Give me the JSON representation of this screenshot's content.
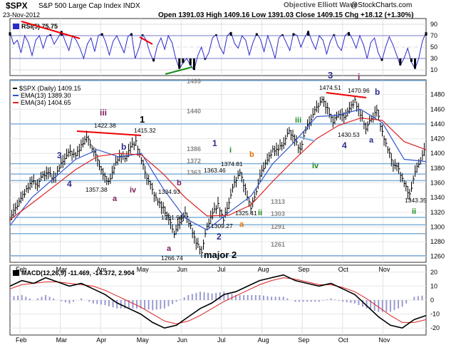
{
  "header": {
    "symbol": "$SPX",
    "description": "S&P 500 Large Cap Index  INDX",
    "date": "23-Nov-2012",
    "ohlc": "Open 1391.03  High 1409.16  Low 1391.03  Close 1409.15  Chg +18.12 (+1.30%)",
    "brand": "Objective Elliott Wave",
    "brand_site": "@StockCharts.com"
  },
  "chart_data": [
    {
      "type": "line",
      "title": "RSI(5) 75.75",
      "ylim": [
        0,
        100
      ],
      "y_ticks": [
        "10",
        "30",
        "50",
        "70",
        "90"
      ],
      "overbought": 70,
      "oversold": 30,
      "series": [
        {
          "values": [
            76,
            55,
            62,
            40,
            70,
            58,
            35,
            62,
            70,
            48,
            68,
            72,
            55,
            66,
            78,
            60,
            44,
            70,
            62,
            48,
            30,
            55,
            66,
            42,
            70,
            74,
            58,
            36,
            60,
            70,
            55,
            40,
            68,
            74,
            30,
            48,
            72,
            62,
            40,
            25,
            52,
            66,
            46,
            70,
            58,
            30,
            12,
            22,
            30,
            18,
            10,
            35,
            50,
            28,
            40,
            66,
            72,
            50,
            38,
            70,
            76,
            56,
            48,
            70,
            62,
            36,
            58,
            74,
            64,
            42,
            70,
            52,
            30,
            66,
            72,
            58,
            44,
            74,
            70,
            50,
            66,
            78,
            60,
            46,
            70,
            62,
            38,
            60,
            72,
            52,
            44,
            70,
            76,
            64,
            48,
            70,
            54,
            30,
            58,
            66,
            40,
            26,
            50,
            68,
            54,
            36,
            18,
            30,
            48,
            24,
            12,
            30,
            60,
            76
          ]
        }
      ]
    },
    {
      "type": "line",
      "title": "$SPX (Daily) 1409.15",
      "x_ticks": [
        "Feb",
        "Mar",
        "Apr",
        "May",
        "Jun",
        "Jul",
        "Aug",
        "Sep",
        "Oct",
        "Nov"
      ],
      "y_ticks": [
        "1260",
        "1280",
        "1300",
        "1320",
        "1340",
        "1360",
        "1380",
        "1400",
        "1420",
        "1440",
        "1460",
        "1480"
      ],
      "ylim": [
        1252,
        1500
      ],
      "legend": [
        "$SPX (Daily) 1409.15",
        "EMA(13) 1389.30",
        "EMA(34) 1404.65"
      ],
      "series": [
        {
          "name": "$SPX (Daily) 1409.15",
          "x": [
            0,
            3,
            6,
            9,
            12,
            15,
            18,
            21,
            24,
            27,
            30,
            33,
            36,
            39,
            42,
            45,
            48,
            51,
            54,
            57,
            60,
            63,
            66,
            69,
            72,
            75,
            78,
            81,
            84,
            87,
            90,
            93,
            96,
            99,
            102,
            105,
            108,
            111,
            114,
            117,
            120,
            123,
            126,
            129,
            132,
            135,
            138,
            141,
            144,
            147,
            150,
            153,
            156,
            159,
            162,
            165,
            168,
            171,
            174,
            177,
            180,
            183,
            186,
            189,
            192,
            195,
            198,
            201,
            204,
            207,
            210,
            213,
            216,
            219,
            222,
            225,
            228
          ],
          "values": [
            1312,
            1325,
            1340,
            1350,
            1362,
            1358,
            1370,
            1375,
            1365,
            1380,
            1395,
            1402,
            1398,
            1410,
            1422,
            1408,
            1390,
            1372,
            1360,
            1380,
            1398,
            1392,
            1410,
            1415,
            1390,
            1368,
            1350,
            1335,
            1325,
            1310,
            1292,
            1305,
            1320,
            1300,
            1278,
            1267,
            1300,
            1320,
            1330,
            1309,
            1335,
            1360,
            1375,
            1350,
            1325,
            1350,
            1376,
            1392,
            1404,
            1405,
            1415,
            1430,
            1420,
            1404,
            1432,
            1448,
            1462,
            1474,
            1460,
            1442,
            1455,
            1448,
            1462,
            1471,
            1452,
            1435,
            1446,
            1460,
            1428,
            1405,
            1386,
            1378,
            1360,
            1343,
            1375,
            1392,
            1409
          ]
        },
        {
          "name": "EMA(13) 1389.30",
          "x": [
            0,
            12,
            24,
            36,
            48,
            60,
            72,
            84,
            96,
            108,
            120,
            132,
            144,
            156,
            168,
            180,
            192,
            204,
            216,
            228
          ],
          "values": [
            1302,
            1340,
            1366,
            1392,
            1405,
            1395,
            1400,
            1352,
            1312,
            1296,
            1320,
            1342,
            1386,
            1416,
            1450,
            1452,
            1460,
            1442,
            1392,
            1389
          ]
        },
        {
          "name": "EMA(34) 1404.65",
          "x": [
            0,
            12,
            24,
            36,
            48,
            60,
            72,
            84,
            96,
            108,
            120,
            132,
            144,
            156,
            168,
            180,
            192,
            204,
            216,
            228
          ],
          "values": [
            1310,
            1332,
            1355,
            1378,
            1396,
            1400,
            1398,
            1372,
            1340,
            1315,
            1316,
            1330,
            1362,
            1392,
            1420,
            1438,
            1448,
            1445,
            1416,
            1405
          ]
        }
      ],
      "horizontal_levels": [
        1499,
        1440,
        1386,
        1372,
        1363,
        1313,
        1303,
        1291,
        1261
      ],
      "annotations": {
        "wave_labels": [
          "iii",
          "1",
          "3",
          "4",
          "b",
          "a",
          "iv",
          "b",
          "a",
          "major 2",
          "1",
          "i",
          "b",
          "2",
          "a",
          "ii",
          "iii",
          "iv",
          "3",
          "i",
          "b",
          "4",
          "a",
          "ii"
        ],
        "price_labels": [
          "1422.38",
          "1415.32",
          "1357.38",
          "1334.93",
          "1291.98",
          "1266.74",
          "1363.46",
          "1374.81",
          "1309.27",
          "1325.41",
          "1474.51",
          "1470.96",
          "1430.53",
          "1343.35"
        ]
      }
    },
    {
      "type": "line",
      "title": "MACD(12,26,9) -11.469, -14.372, 2.904",
      "ylim": [
        -25,
        25
      ],
      "y_ticks": [
        "20",
        "10",
        "0",
        "-10",
        "-20"
      ],
      "x_ticks": [
        "Feb",
        "Mar",
        "Apr",
        "May",
        "Jun",
        "Jul",
        "Aug",
        "Sep",
        "Oct",
        "Nov"
      ],
      "series": [
        {
          "name": "MACD",
          "values": [
            10,
            14,
            12,
            16,
            13,
            10,
            12,
            8,
            4,
            -2,
            -6,
            -10,
            -16,
            -20,
            -18,
            -12,
            -6,
            -2,
            4,
            6,
            10,
            14,
            16,
            18,
            14,
            12,
            10,
            12,
            8,
            4,
            -4,
            -12,
            -18,
            -20,
            -14,
            -11
          ]
        },
        {
          "name": "Signal",
          "values": [
            8,
            11,
            12,
            13,
            13,
            12,
            11,
            10,
            7,
            3,
            -1,
            -5,
            -10,
            -15,
            -17,
            -15,
            -11,
            -6,
            -1,
            3,
            7,
            11,
            14,
            16,
            15,
            13,
            11,
            11,
            9,
            6,
            1,
            -5,
            -11,
            -16,
            -16,
            -14
          ]
        }
      ]
    }
  ]
}
